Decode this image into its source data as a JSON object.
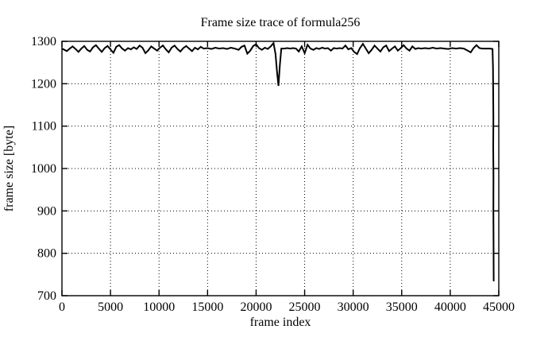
{
  "window": {
    "background": "#ffffff",
    "foreground": "#000000"
  },
  "chart_data": {
    "type": "line",
    "title": "Frame size trace of formula256",
    "xlabel": "frame index",
    "ylabel": "frame size [byte]",
    "xlim": [
      0,
      45000
    ],
    "ylim": [
      700,
      1300
    ],
    "xticks": [
      0,
      5000,
      10000,
      15000,
      20000,
      25000,
      30000,
      35000,
      40000,
      45000
    ],
    "yticks": [
      700,
      800,
      900,
      1000,
      1100,
      1200,
      1300
    ],
    "grid": "dotted",
    "legend": "none",
    "line_color": "#000000",
    "line_width": 2,
    "series": [
      {
        "name": "frame size",
        "points": [
          [
            0,
            1283
          ],
          [
            250,
            1280
          ],
          [
            500,
            1277
          ],
          [
            800,
            1283
          ],
          [
            1100,
            1288
          ],
          [
            1400,
            1282
          ],
          [
            1700,
            1275
          ],
          [
            2000,
            1283
          ],
          [
            2300,
            1289
          ],
          [
            2600,
            1280
          ],
          [
            2900,
            1276
          ],
          [
            3200,
            1286
          ],
          [
            3500,
            1291
          ],
          [
            3800,
            1283
          ],
          [
            4100,
            1275
          ],
          [
            4400,
            1284
          ],
          [
            4700,
            1289
          ],
          [
            5000,
            1281
          ],
          [
            5300,
            1273
          ],
          [
            5600,
            1287
          ],
          [
            5900,
            1291
          ],
          [
            6200,
            1283
          ],
          [
            6500,
            1278
          ],
          [
            6800,
            1284
          ],
          [
            7100,
            1281
          ],
          [
            7400,
            1286
          ],
          [
            7700,
            1282
          ],
          [
            8000,
            1290
          ],
          [
            8300,
            1285
          ],
          [
            8600,
            1272
          ],
          [
            8900,
            1279
          ],
          [
            9200,
            1288
          ],
          [
            9500,
            1283
          ],
          [
            9800,
            1278
          ],
          [
            10100,
            1285
          ],
          [
            10400,
            1290
          ],
          [
            10700,
            1281
          ],
          [
            11000,
            1274
          ],
          [
            11300,
            1285
          ],
          [
            11600,
            1290
          ],
          [
            11900,
            1282
          ],
          [
            12200,
            1276
          ],
          [
            12500,
            1284
          ],
          [
            12800,
            1289
          ],
          [
            13100,
            1283
          ],
          [
            13400,
            1277
          ],
          [
            13700,
            1285
          ],
          [
            14000,
            1281
          ],
          [
            14300,
            1287
          ],
          [
            14600,
            1283
          ],
          [
            15000,
            1284
          ],
          [
            15400,
            1282
          ],
          [
            15800,
            1285
          ],
          [
            16200,
            1283
          ],
          [
            16600,
            1284
          ],
          [
            17000,
            1282
          ],
          [
            17400,
            1285
          ],
          [
            17800,
            1283
          ],
          [
            18200,
            1280
          ],
          [
            18500,
            1287
          ],
          [
            18800,
            1290
          ],
          [
            19100,
            1271
          ],
          [
            19400,
            1278
          ],
          [
            19700,
            1289
          ],
          [
            20000,
            1293
          ],
          [
            20300,
            1284
          ],
          [
            20600,
            1280
          ],
          [
            20900,
            1285
          ],
          [
            21200,
            1282
          ],
          [
            21500,
            1288
          ],
          [
            21800,
            1296
          ],
          [
            22000,
            1270
          ],
          [
            22150,
            1230
          ],
          [
            22300,
            1195
          ],
          [
            22450,
            1245
          ],
          [
            22600,
            1283
          ],
          [
            22900,
            1283
          ],
          [
            23200,
            1284
          ],
          [
            23500,
            1283
          ],
          [
            23800,
            1284
          ],
          [
            24100,
            1283
          ],
          [
            24400,
            1276
          ],
          [
            24700,
            1288
          ],
          [
            25000,
            1272
          ],
          [
            25300,
            1292
          ],
          [
            25600,
            1283
          ],
          [
            25900,
            1280
          ],
          [
            26200,
            1284
          ],
          [
            26500,
            1282
          ],
          [
            26800,
            1285
          ],
          [
            27100,
            1283
          ],
          [
            27400,
            1284
          ],
          [
            27700,
            1278
          ],
          [
            28000,
            1284
          ],
          [
            28300,
            1283
          ],
          [
            28600,
            1284
          ],
          [
            28900,
            1283
          ],
          [
            29200,
            1290
          ],
          [
            29500,
            1281
          ],
          [
            29800,
            1284
          ],
          [
            30100,
            1275
          ],
          [
            30400,
            1270
          ],
          [
            30700,
            1284
          ],
          [
            31000,
            1294
          ],
          [
            31300,
            1283
          ],
          [
            31600,
            1272
          ],
          [
            31900,
            1280
          ],
          [
            32200,
            1290
          ],
          [
            32500,
            1283
          ],
          [
            32800,
            1276
          ],
          [
            33100,
            1286
          ],
          [
            33400,
            1290
          ],
          [
            33700,
            1277
          ],
          [
            34000,
            1283
          ],
          [
            34300,
            1288
          ],
          [
            34600,
            1278
          ],
          [
            34900,
            1284
          ],
          [
            35200,
            1291
          ],
          [
            35500,
            1283
          ],
          [
            35800,
            1278
          ],
          [
            36100,
            1288
          ],
          [
            36400,
            1282
          ],
          [
            36700,
            1284
          ],
          [
            37000,
            1283
          ],
          [
            37400,
            1284
          ],
          [
            37800,
            1283
          ],
          [
            38200,
            1285
          ],
          [
            38600,
            1283
          ],
          [
            39000,
            1284
          ],
          [
            39400,
            1283
          ],
          [
            39800,
            1282
          ],
          [
            40200,
            1284
          ],
          [
            40600,
            1283
          ],
          [
            41000,
            1284
          ],
          [
            41400,
            1283
          ],
          [
            41800,
            1278
          ],
          [
            42100,
            1274
          ],
          [
            42400,
            1284
          ],
          [
            42700,
            1291
          ],
          [
            43000,
            1284
          ],
          [
            43300,
            1283
          ],
          [
            43700,
            1283
          ],
          [
            44100,
            1283
          ],
          [
            44350,
            1282
          ],
          [
            44400,
            1240
          ],
          [
            44420,
            1190
          ],
          [
            44440,
            1120
          ],
          [
            44430,
            1050
          ],
          [
            44450,
            980
          ],
          [
            44440,
            900
          ],
          [
            44460,
            830
          ],
          [
            44470,
            770
          ],
          [
            44480,
            734
          ]
        ]
      }
    ]
  }
}
